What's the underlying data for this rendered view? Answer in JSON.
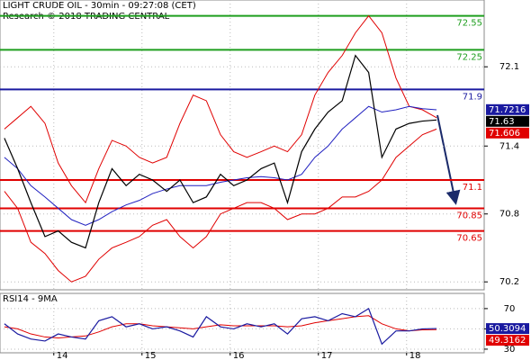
{
  "chart_data": [
    {
      "type": "line",
      "title": "LIGHT CRUDE OIL - 30min - 09:27:08 (CET)",
      "subtitle": "Research © 2018 TRADING CENTRAL",
      "x": [
        13.44,
        13.59,
        13.74,
        13.9,
        14.05,
        14.2,
        14.36,
        14.51,
        14.66,
        14.82,
        14.97,
        15.12,
        15.28,
        15.43,
        15.58,
        15.73,
        15.89,
        16.04,
        16.19,
        16.35,
        16.5,
        16.65,
        16.81,
        16.96,
        17.11,
        17.27,
        17.42,
        17.57,
        17.72,
        17.88,
        18.03,
        18.18,
        18.34
      ],
      "series": [
        {
          "color": "#e00000",
          "values": [
            71.55,
            71.65,
            71.75,
            71.6,
            71.25,
            71.05,
            70.9,
            71.2,
            71.45,
            71.4,
            71.3,
            71.25,
            71.3,
            71.6,
            71.85,
            71.8,
            71.5,
            71.35,
            71.3,
            71.35,
            71.4,
            71.35,
            71.5,
            71.85,
            72.05,
            72.2,
            72.4,
            72.55,
            72.4,
            72.0,
            71.75,
            71.72,
            71.65
          ]
        },
        {
          "color": "#e00000",
          "values": [
            71.0,
            70.85,
            70.55,
            70.45,
            70.3,
            70.2,
            70.25,
            70.4,
            70.5,
            70.55,
            70.6,
            70.7,
            70.75,
            70.6,
            70.5,
            70.6,
            70.8,
            70.85,
            70.9,
            70.9,
            70.85,
            70.75,
            70.8,
            70.8,
            70.85,
            70.95,
            70.95,
            71.0,
            71.1,
            71.3,
            71.4,
            71.5,
            71.55
          ]
        },
        {
          "color": "#2020c0",
          "values": [
            71.3,
            71.2,
            71.05,
            70.95,
            70.85,
            70.75,
            70.7,
            70.75,
            70.82,
            70.88,
            70.92,
            70.98,
            71.02,
            71.05,
            71.05,
            71.05,
            71.08,
            71.1,
            71.12,
            71.13,
            71.12,
            71.1,
            71.15,
            71.3,
            71.4,
            71.55,
            71.65,
            71.75,
            71.7,
            71.72,
            71.75,
            71.73,
            71.72
          ]
        },
        {
          "color": "#000000",
          "values": [
            71.47,
            71.2,
            70.9,
            70.6,
            70.65,
            70.55,
            70.5,
            70.9,
            71.2,
            71.05,
            71.15,
            71.1,
            71.0,
            71.1,
            70.9,
            70.95,
            71.15,
            71.05,
            71.1,
            71.2,
            71.25,
            70.9,
            71.35,
            71.55,
            71.7,
            71.8,
            72.2,
            72.05,
            71.3,
            71.55,
            71.6,
            71.62,
            71.63
          ]
        }
      ],
      "levels": [
        {
          "value": 72.55,
          "color": "#1e9e1e"
        },
        {
          "value": 72.25,
          "color": "#1e9e1e"
        },
        {
          "value": 71.9,
          "color": "#1a1aa0"
        },
        {
          "value": 71.1,
          "color": "#e00000"
        },
        {
          "value": 70.85,
          "color": "#e00000"
        },
        {
          "value": 70.65,
          "color": "#e00000"
        }
      ],
      "price_tags": [
        {
          "value": 71.7216,
          "color": "#1a1aa0"
        },
        {
          "value": 71.63,
          "color": "#000000"
        },
        {
          "value": 71.606,
          "color": "#e00000"
        }
      ],
      "xlim": [
        13.39,
        18.88
      ],
      "xticks": [
        14,
        15,
        16,
        17,
        18
      ],
      "ylim": [
        70.13,
        72.69
      ],
      "yticks": [
        70.2,
        70.8,
        71.4,
        72.1
      ],
      "grid": true
    },
    {
      "type": "line",
      "title": "RSI14 - 9MA",
      "x": [
        13.44,
        13.59,
        13.74,
        13.9,
        14.05,
        14.2,
        14.36,
        14.51,
        14.66,
        14.82,
        14.97,
        15.12,
        15.28,
        15.43,
        15.58,
        15.73,
        15.89,
        16.04,
        16.19,
        16.35,
        16.5,
        16.65,
        16.81,
        16.96,
        17.11,
        17.27,
        17.42,
        17.57,
        17.72,
        17.88,
        18.03,
        18.18,
        18.34
      ],
      "series": [
        {
          "color": "#e00000",
          "values": [
            52,
            50,
            45,
            42,
            41,
            42,
            43,
            47,
            52,
            55,
            55,
            53,
            52,
            51,
            50,
            52,
            54,
            53,
            53,
            53,
            53,
            52,
            53,
            56,
            58,
            60,
            62,
            63,
            55,
            50,
            48,
            49,
            49.3162
          ]
        },
        {
          "color": "#1a1aa0",
          "values": [
            55,
            45,
            40,
            38,
            45,
            42,
            40,
            58,
            62,
            52,
            55,
            50,
            52,
            48,
            42,
            62,
            52,
            50,
            55,
            52,
            55,
            45,
            60,
            62,
            58,
            65,
            62,
            70,
            35,
            48,
            48,
            50,
            50.3094
          ]
        }
      ],
      "price_tags": [
        {
          "value": 50.3094,
          "color": "#1a1aa0"
        },
        {
          "value": 49.3162,
          "color": "#e00000"
        }
      ],
      "xlim": [
        13.39,
        18.88
      ],
      "xticks": [
        14,
        15,
        16,
        17,
        18
      ],
      "ylim": [
        26.4,
        85
      ],
      "yticks": [
        70,
        50,
        30
      ],
      "grid": true
    }
  ]
}
